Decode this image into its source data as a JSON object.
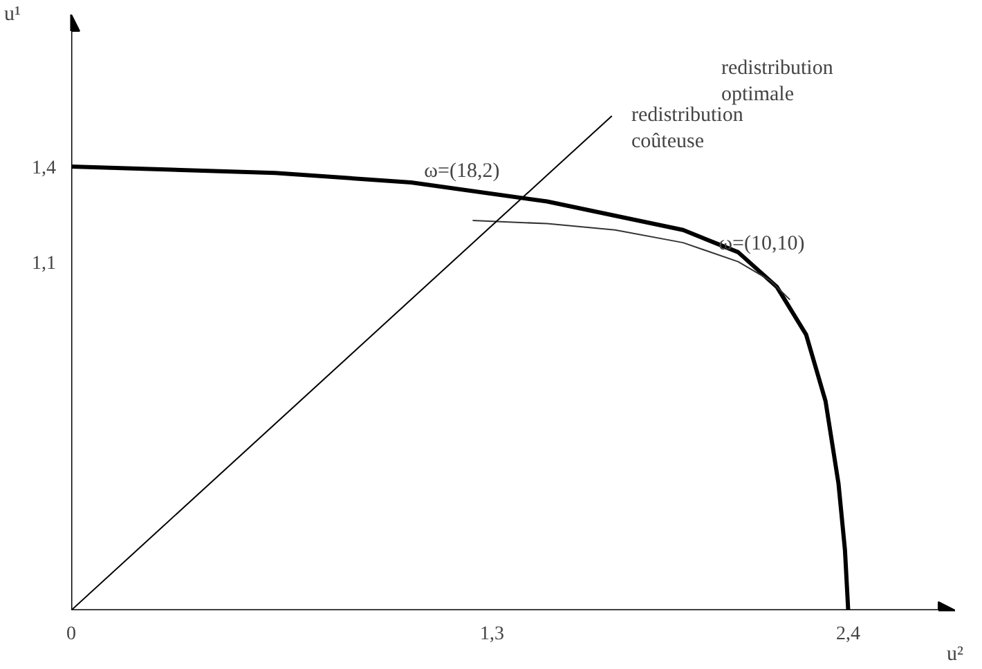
{
  "chart_data": {
    "type": "line",
    "xlabel": "u²",
    "ylabel": "u¹",
    "xlim": [
      0,
      2.73
    ],
    "ylim": [
      0,
      1.88
    ],
    "xticks": [
      0,
      {
        "value": 1.3,
        "label": "1,3"
      },
      {
        "value": 2.4,
        "label": "2,4"
      }
    ],
    "yticks": [
      {
        "value": 1.1,
        "label": "1,1"
      },
      {
        "value": 1.4,
        "label": "1,4"
      }
    ],
    "grid": false,
    "marker": "none",
    "line_style": "solid",
    "series": [
      {
        "color": "#000000",
        "x": [
          0,
          0.63,
          1.05,
          1.47,
          1.89,
          2.06,
          2.18,
          2.27,
          2.33,
          2.37,
          2.39,
          2.4
        ],
        "values": [
          1.4,
          1.38,
          1.35,
          1.29,
          1.2,
          1.13,
          1.02,
          0.87,
          0.66,
          0.4,
          0.19,
          0
        ]
      },
      {
        "color": "#333333",
        "x": [
          1.24,
          1.47,
          1.68,
          1.89,
          2.06,
          2.16,
          2.22
        ],
        "values": [
          1.23,
          1.22,
          1.2,
          1.16,
          1.1,
          1.04,
          0.98
        ]
      },
      {
        "color": "#000000",
        "x": [
          0,
          1.67
        ],
        "values": [
          0,
          1.56
        ]
      }
    ],
    "annotations": [
      {
        "text": "ω=(18,2)",
        "x": 1.09,
        "y": 1.35
      },
      "redistribution\noptimale",
      "redistribution\ncoûteuse",
      {
        "text": "ω=(10,10)",
        "x": 2.0,
        "y": 1.12
      }
    ]
  }
}
